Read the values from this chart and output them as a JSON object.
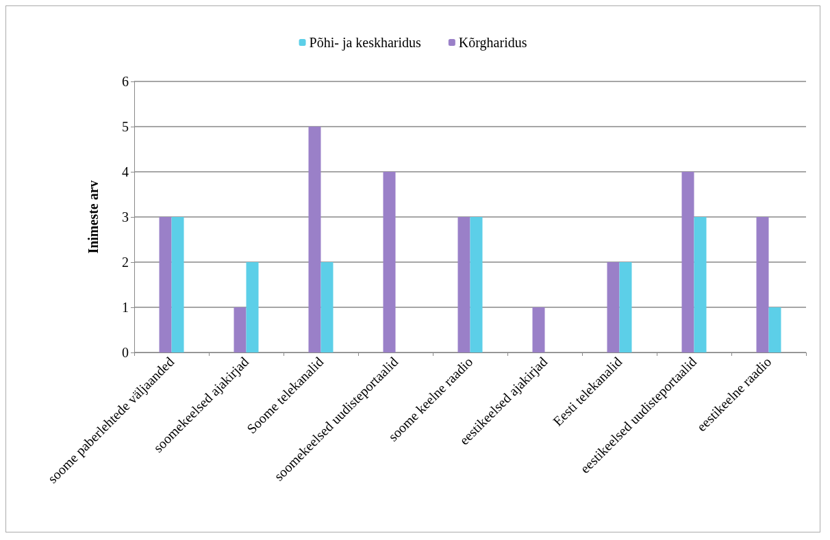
{
  "chart_data": {
    "type": "bar",
    "ylabel": "Inimeste arv",
    "categories": [
      "soome paberlehtede väljaanded",
      "soomekeelsed ajakirjad",
      "Soome telekanalid",
      "soomekeelsed uudisteportaalid",
      "soome keelne raadio",
      "eestikeelsed ajakirjad",
      "Eesti telekanalid",
      "eestikeelsed uudisteportaalid",
      "eestikeelne raadio"
    ],
    "series": [
      {
        "name": "Põhi- ja keskharidus",
        "color": "#5ccfe8",
        "values": [
          3,
          2,
          2,
          0,
          3,
          0,
          2,
          3,
          1
        ]
      },
      {
        "name": "Kõrgharidus",
        "color": "#9a80c8",
        "values": [
          3,
          1,
          5,
          4,
          3,
          1,
          2,
          4,
          3
        ]
      }
    ],
    "ylim": [
      0,
      6
    ],
    "yticks": [
      0,
      1,
      2,
      3,
      4,
      5,
      6
    ],
    "grid": "y",
    "legend": "top"
  }
}
